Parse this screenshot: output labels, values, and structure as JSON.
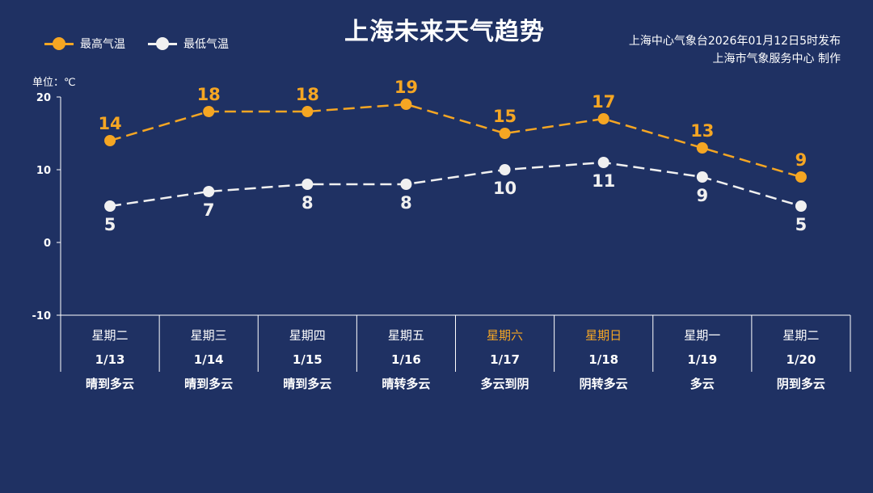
{
  "title": "上海未来天气趋势",
  "source_line1": "上海中心气象台2026年01月12日5时发布",
  "source_line2": "上海市气象服务中心  制作",
  "unit_label": "单位：℃",
  "colors": {
    "background": "#1f3163",
    "high": "#f5a623",
    "low": "#f0f0f0"
  },
  "chart_data": {
    "type": "line",
    "title": "上海未来天气趋势",
    "ylabel": "单位：℃",
    "ylim": [
      -10,
      20
    ],
    "yticks": [
      -10,
      0,
      10,
      20
    ],
    "legend_position": "top-left",
    "grid": false,
    "days": [
      {
        "weekday": "星期二",
        "date": "1/13",
        "weather": "晴到多云",
        "weekend": false
      },
      {
        "weekday": "星期三",
        "date": "1/14",
        "weather": "晴到多云",
        "weekend": false
      },
      {
        "weekday": "星期四",
        "date": "1/15",
        "weather": "晴到多云",
        "weekend": false
      },
      {
        "weekday": "星期五",
        "date": "1/16",
        "weather": "晴转多云",
        "weekend": false
      },
      {
        "weekday": "星期六",
        "date": "1/17",
        "weather": "多云到阴",
        "weekend": true
      },
      {
        "weekday": "星期日",
        "date": "1/18",
        "weather": "阴转多云",
        "weekend": true
      },
      {
        "weekday": "星期一",
        "date": "1/19",
        "weather": "多云",
        "weekend": false
      },
      {
        "weekday": "星期二",
        "date": "1/20",
        "weather": "阴到多云",
        "weekend": false
      }
    ],
    "series": [
      {
        "name": "最高气温",
        "values": [
          14,
          18,
          18,
          19,
          15,
          17,
          13,
          9
        ],
        "color": "#f5a623"
      },
      {
        "name": "最低气温",
        "values": [
          5,
          7,
          8,
          8,
          10,
          11,
          9,
          5
        ],
        "color": "#f0f0f0"
      }
    ]
  }
}
